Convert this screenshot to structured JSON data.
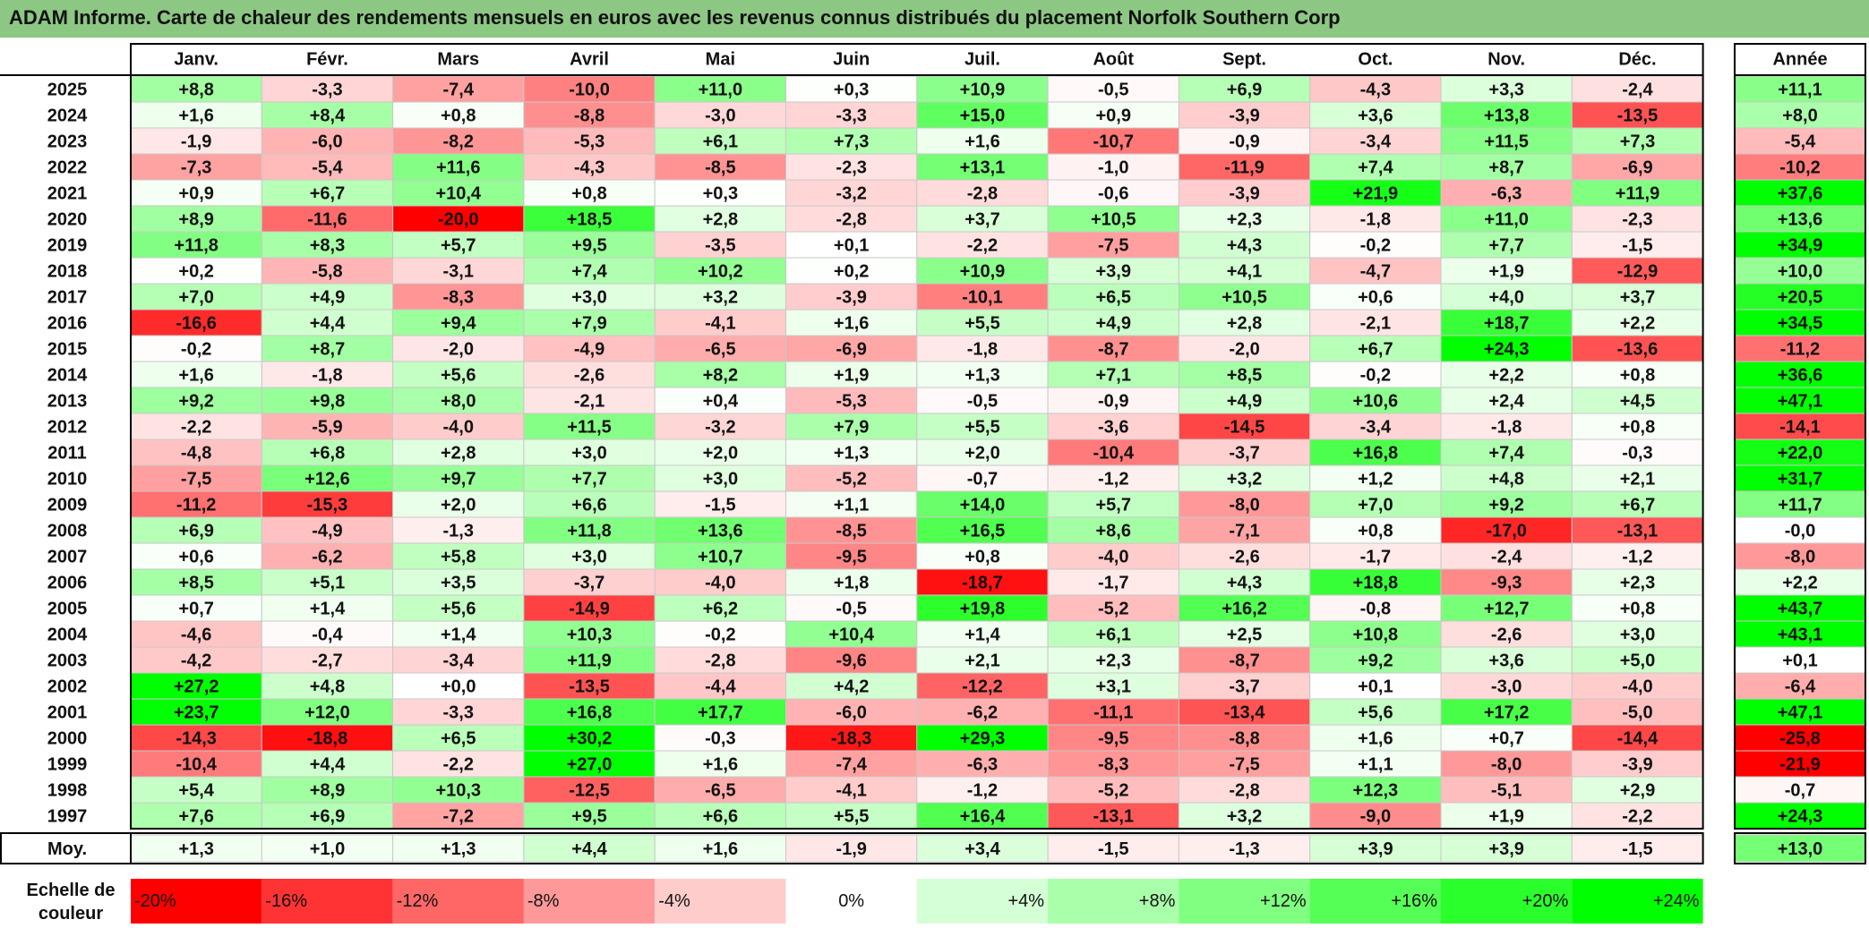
{
  "title": "ADAM Informe. Carte de chaleur des rendements mensuels en euros avec les revenus connus distribués du placement Norfolk Southern Corp",
  "chart_data": {
    "type": "heatmap",
    "months": [
      "Janv.",
      "Févr.",
      "Mars",
      "Avril",
      "Mai",
      "Juin",
      "Juil.",
      "Août",
      "Sept.",
      "Oct.",
      "Nov.",
      "Déc."
    ],
    "year_header": "Année",
    "rows": [
      {
        "year": "2025",
        "values": [
          "+8,8",
          "-3,3",
          "-7,4",
          "-10,0",
          "+11,0",
          "+0,3",
          "+10,9",
          "-0,5",
          "+6,9",
          "-4,3",
          "+3,3",
          "-2,4"
        ],
        "annual": "+11,1"
      },
      {
        "year": "2024",
        "values": [
          "+1,6",
          "+8,4",
          "+0,8",
          "-8,8",
          "-3,0",
          "-3,3",
          "+15,0",
          "+0,9",
          "-3,9",
          "+3,6",
          "+13,8",
          "-13,5"
        ],
        "annual": "+8,0"
      },
      {
        "year": "2023",
        "values": [
          "-1,9",
          "-6,0",
          "-8,2",
          "-5,3",
          "+6,1",
          "+7,3",
          "+1,6",
          "-10,7",
          "-0,9",
          "-3,4",
          "+11,5",
          "+7,3"
        ],
        "annual": "-5,4"
      },
      {
        "year": "2022",
        "values": [
          "-7,3",
          "-5,4",
          "+11,6",
          "-4,3",
          "-8,5",
          "-2,3",
          "+13,1",
          "-1,0",
          "-11,9",
          "+7,4",
          "+8,7",
          "-6,9"
        ],
        "annual": "-10,2"
      },
      {
        "year": "2021",
        "values": [
          "+0,9",
          "+6,7",
          "+10,4",
          "+0,8",
          "+0,3",
          "-3,2",
          "-2,8",
          "-0,6",
          "-3,9",
          "+21,9",
          "-6,3",
          "+11,9"
        ],
        "annual": "+37,6"
      },
      {
        "year": "2020",
        "values": [
          "+8,9",
          "-11,6",
          "-20,0",
          "+18,5",
          "+2,8",
          "-2,8",
          "+3,7",
          "+10,5",
          "+2,3",
          "-1,8",
          "+11,0",
          "-2,3"
        ],
        "annual": "+13,6"
      },
      {
        "year": "2019",
        "values": [
          "+11,8",
          "+8,3",
          "+5,7",
          "+9,5",
          "-3,5",
          "+0,1",
          "-2,2",
          "-7,5",
          "+4,3",
          "-0,2",
          "+7,7",
          "-1,5"
        ],
        "annual": "+34,9"
      },
      {
        "year": "2018",
        "values": [
          "+0,2",
          "-5,8",
          "-3,1",
          "+7,4",
          "+10,2",
          "+0,2",
          "+10,9",
          "+3,9",
          "+4,1",
          "-4,7",
          "+1,9",
          "-12,9"
        ],
        "annual": "+10,0"
      },
      {
        "year": "2017",
        "values": [
          "+7,0",
          "+4,9",
          "-8,3",
          "+3,0",
          "+3,2",
          "-3,9",
          "-10,1",
          "+6,5",
          "+10,5",
          "+0,6",
          "+4,0",
          "+3,7"
        ],
        "annual": "+20,5"
      },
      {
        "year": "2016",
        "values": [
          "-16,6",
          "+4,4",
          "+9,4",
          "+7,9",
          "-4,1",
          "+1,6",
          "+5,5",
          "+4,9",
          "+2,8",
          "-2,1",
          "+18,7",
          "+2,2"
        ],
        "annual": "+34,5"
      },
      {
        "year": "2015",
        "values": [
          "-0,2",
          "+8,7",
          "-2,0",
          "-4,9",
          "-6,5",
          "-6,9",
          "-1,8",
          "-8,7",
          "-2,0",
          "+6,7",
          "+24,3",
          "-13,6"
        ],
        "annual": "-11,2"
      },
      {
        "year": "2014",
        "values": [
          "+1,6",
          "-1,8",
          "+5,6",
          "-2,6",
          "+8,2",
          "+1,9",
          "+1,3",
          "+7,1",
          "+8,5",
          "-0,2",
          "+2,2",
          "+0,8"
        ],
        "annual": "+36,6"
      },
      {
        "year": "2013",
        "values": [
          "+9,2",
          "+9,8",
          "+8,0",
          "-2,1",
          "+0,4",
          "-5,3",
          "-0,5",
          "-0,9",
          "+4,9",
          "+10,6",
          "+2,4",
          "+4,5"
        ],
        "annual": "+47,1"
      },
      {
        "year": "2012",
        "values": [
          "-2,2",
          "-5,9",
          "-4,0",
          "+11,5",
          "-3,2",
          "+7,9",
          "+5,5",
          "-3,6",
          "-14,5",
          "-3,4",
          "-1,8",
          "+0,8"
        ],
        "annual": "-14,1"
      },
      {
        "year": "2011",
        "values": [
          "-4,8",
          "+6,8",
          "+2,8",
          "+3,0",
          "+2,0",
          "+1,3",
          "+2,0",
          "-10,4",
          "-3,7",
          "+16,8",
          "+7,4",
          "-0,3"
        ],
        "annual": "+22,0"
      },
      {
        "year": "2010",
        "values": [
          "-7,5",
          "+12,6",
          "+9,7",
          "+7,7",
          "+3,0",
          "-5,2",
          "-0,7",
          "-1,2",
          "+3,2",
          "+1,2",
          "+4,8",
          "+2,1"
        ],
        "annual": "+31,7"
      },
      {
        "year": "2009",
        "values": [
          "-11,2",
          "-15,3",
          "+2,0",
          "+6,6",
          "-1,5",
          "+1,1",
          "+14,0",
          "+5,7",
          "-8,0",
          "+7,0",
          "+9,2",
          "+6,7"
        ],
        "annual": "+11,7"
      },
      {
        "year": "2008",
        "values": [
          "+6,9",
          "-4,9",
          "-1,3",
          "+11,8",
          "+13,6",
          "-8,5",
          "+16,5",
          "+8,6",
          "-7,1",
          "+0,8",
          "-17,0",
          "-13,1"
        ],
        "annual": "-0,0"
      },
      {
        "year": "2007",
        "values": [
          "+0,6",
          "-6,2",
          "+5,8",
          "+3,0",
          "+10,7",
          "-9,5",
          "+0,8",
          "-4,0",
          "-2,6",
          "-1,7",
          "-2,4",
          "-1,2"
        ],
        "annual": "-8,0"
      },
      {
        "year": "2006",
        "values": [
          "+8,5",
          "+5,1",
          "+3,5",
          "-3,7",
          "-4,0",
          "+1,8",
          "-18,7",
          "-1,7",
          "+4,3",
          "+18,8",
          "-9,3",
          "+2,3"
        ],
        "annual": "+2,2"
      },
      {
        "year": "2005",
        "values": [
          "+0,7",
          "+1,4",
          "+5,6",
          "-14,9",
          "+6,2",
          "-0,5",
          "+19,8",
          "-5,2",
          "+16,2",
          "-0,8",
          "+12,7",
          "+0,8"
        ],
        "annual": "+43,7"
      },
      {
        "year": "2004",
        "values": [
          "-4,6",
          "-0,4",
          "+1,4",
          "+10,3",
          "-0,2",
          "+10,4",
          "+1,4",
          "+6,1",
          "+2,5",
          "+10,8",
          "-2,6",
          "+3,0"
        ],
        "annual": "+43,1"
      },
      {
        "year": "2003",
        "values": [
          "-4,2",
          "-2,7",
          "-3,4",
          "+11,9",
          "-2,8",
          "-9,6",
          "+2,1",
          "+2,3",
          "-8,7",
          "+9,2",
          "+3,6",
          "+5,0"
        ],
        "annual": "+0,1"
      },
      {
        "year": "2002",
        "values": [
          "+27,2",
          "+4,8",
          "+0,0",
          "-13,5",
          "-4,4",
          "+4,2",
          "-12,2",
          "+3,1",
          "-3,7",
          "+0,1",
          "-3,0",
          "-4,0"
        ],
        "annual": "-6,4"
      },
      {
        "year": "2001",
        "values": [
          "+23,7",
          "+12,0",
          "-3,3",
          "+16,8",
          "+17,7",
          "-6,0",
          "-6,2",
          "-11,1",
          "-13,4",
          "+5,6",
          "+17,2",
          "-5,0"
        ],
        "annual": "+47,1"
      },
      {
        "year": "2000",
        "values": [
          "-14,3",
          "-18,8",
          "+6,5",
          "+30,2",
          "-0,3",
          "-18,3",
          "+29,3",
          "-9,5",
          "-8,8",
          "+1,6",
          "+0,7",
          "-14,4"
        ],
        "annual": "-25,8"
      },
      {
        "year": "1999",
        "values": [
          "-10,4",
          "+4,4",
          "-2,2",
          "+27,0",
          "+1,6",
          "-7,4",
          "-6,3",
          "-8,3",
          "-7,5",
          "+1,1",
          "-8,0",
          "-3,9"
        ],
        "annual": "-21,9"
      },
      {
        "year": "1998",
        "values": [
          "+5,4",
          "+8,9",
          "+10,3",
          "-12,5",
          "-6,5",
          "-4,1",
          "-1,2",
          "-5,2",
          "-2,8",
          "+12,3",
          "-5,1",
          "+2,9"
        ],
        "annual": "-0,7"
      },
      {
        "year": "1997",
        "values": [
          "+7,6",
          "+6,9",
          "-7,2",
          "+9,5",
          "+6,6",
          "+5,5",
          "+16,4",
          "-13,1",
          "+3,2",
          "-9,0",
          "+1,9",
          "-2,2"
        ],
        "annual": "+24,3"
      }
    ],
    "average": {
      "label": "Moy.",
      "values": [
        "+1,3",
        "+1,0",
        "+1,3",
        "+4,4",
        "+1,6",
        "-1,9",
        "+3,4",
        "-1,5",
        "-1,3",
        "+3,9",
        "+3,9",
        "-1,5"
      ],
      "annual": "+13,0"
    },
    "color_scale": {
      "label_line1": "Echelle de",
      "label_line2": "couleur",
      "stops": [
        "-20%",
        "-16%",
        "-12%",
        "-8%",
        "-4%",
        "0%",
        "+4%",
        "+8%",
        "+12%",
        "+16%",
        "+20%",
        "+24%"
      ],
      "negative_color": "#ff0000",
      "neutral_color": "#ffffff",
      "positive_color": "#00ff00"
    }
  }
}
